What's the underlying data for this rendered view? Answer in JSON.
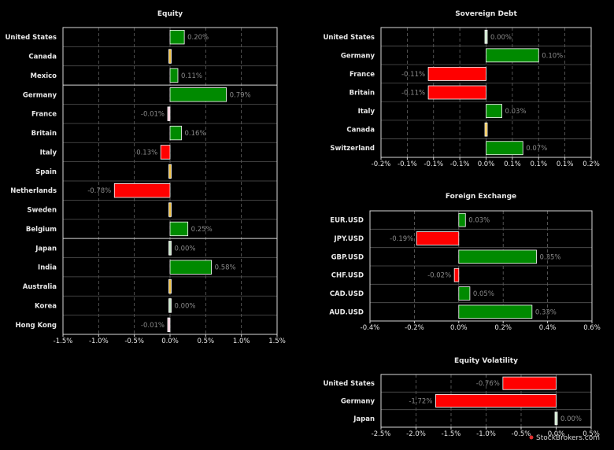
{
  "chart_data": [
    {
      "type": "bar",
      "orientation": "horizontal",
      "title": "Equity",
      "categories": [
        "United States",
        "Canada",
        "Mexico",
        "Germany",
        "France",
        "Britain",
        "Italy",
        "Spain",
        "Netherlands",
        "Sweden",
        "Belgium",
        "Japan",
        "India",
        "Australia",
        "Korea",
        "Hong Kong"
      ],
      "values": [
        0.2,
        0.0,
        0.11,
        0.79,
        -0.01,
        0.16,
        -0.13,
        0.0,
        -0.78,
        0.0,
        0.25,
        0.0,
        0.58,
        0.0,
        0.0,
        -0.01
      ],
      "value_labels": [
        "0.20%",
        "",
        "0.11%",
        "0.79%",
        "-0.01%",
        "0.16%",
        "-0.13%",
        "",
        "-0.78%",
        "",
        "0.25%",
        "0.00%",
        "0.58%",
        "",
        "0.00%",
        "-0.01%"
      ],
      "xlim": [
        -1.5,
        1.5
      ],
      "xticks": [
        -1.5,
        -1.0,
        -0.5,
        0.0,
        0.5,
        1.0,
        1.5
      ],
      "xtick_labels": [
        "-1.5%",
        "-1.0%",
        "-0.5%",
        "0.0%",
        "0.5%",
        "1.0%",
        "1.5%"
      ],
      "group_separators_after": [
        "Mexico",
        "Belgium"
      ],
      "grid": true
    },
    {
      "type": "bar",
      "orientation": "horizontal",
      "title": "Sovereign Debt",
      "categories": [
        "United States",
        "Germany",
        "France",
        "Britain",
        "Italy",
        "Canada",
        "Switzerland"
      ],
      "values": [
        0.0,
        0.1,
        -0.11,
        -0.11,
        0.03,
        0.0,
        0.07
      ],
      "value_labels": [
        "0.00%",
        "0.10%",
        "-0.11%",
        "-0.11%",
        "0.03%",
        "",
        "0.07%"
      ],
      "xlim": [
        -0.2,
        0.2
      ],
      "xticks": [
        -0.2,
        -0.15,
        -0.1,
        -0.05,
        0.0,
        0.05,
        0.1,
        0.15,
        0.2
      ],
      "xtick_labels": [
        "-0.2%",
        "-0.1%",
        "-0.1%",
        "-0.1%",
        "0.0%",
        "0.1%",
        "0.1%",
        "0.1%",
        "0.2%"
      ],
      "grid": true
    },
    {
      "type": "bar",
      "orientation": "horizontal",
      "title": "Foreign Exchange",
      "categories": [
        "EUR.USD",
        "JPY.USD",
        "GBP.USD",
        "CHF.USD",
        "CAD.USD",
        "AUD.USD"
      ],
      "values": [
        0.03,
        -0.19,
        0.35,
        -0.02,
        0.05,
        0.33
      ],
      "value_labels": [
        "0.03%",
        "-0.19%",
        "0.35%",
        "-0.02%",
        "0.05%",
        "0.33%"
      ],
      "xlim": [
        -0.4,
        0.6
      ],
      "xticks": [
        -0.4,
        -0.2,
        0.0,
        0.2,
        0.4,
        0.6
      ],
      "xtick_labels": [
        "-0.4%",
        "-0.2%",
        "0.0%",
        "0.2%",
        "0.4%",
        "0.6%"
      ],
      "grid": true
    },
    {
      "type": "bar",
      "orientation": "horizontal",
      "title": "Equity Volatility",
      "categories": [
        "United States",
        "Germany",
        "Japan"
      ],
      "values": [
        -0.76,
        -1.72,
        0.0
      ],
      "value_labels": [
        "-0.76%",
        "-1.72%",
        "0.00%"
      ],
      "xlim": [
        -2.5,
        0.5
      ],
      "xticks": [
        -2.5,
        -2.0,
        -1.5,
        -1.0,
        -0.5,
        0.0,
        0.5
      ],
      "xtick_labels": [
        "-2.5%",
        "-2.0%",
        "-1.5%",
        "-1.0%",
        "-0.5%",
        "0.0%",
        "0.5%"
      ],
      "grid": true
    }
  ],
  "colors": {
    "positive": "#008a00",
    "negative": "#ff0000",
    "zero_up": "#c8e6c8",
    "zero_flat": "#f0c040",
    "zero_down": "#f4c8d8"
  },
  "watermark": "StockBrokers.com"
}
